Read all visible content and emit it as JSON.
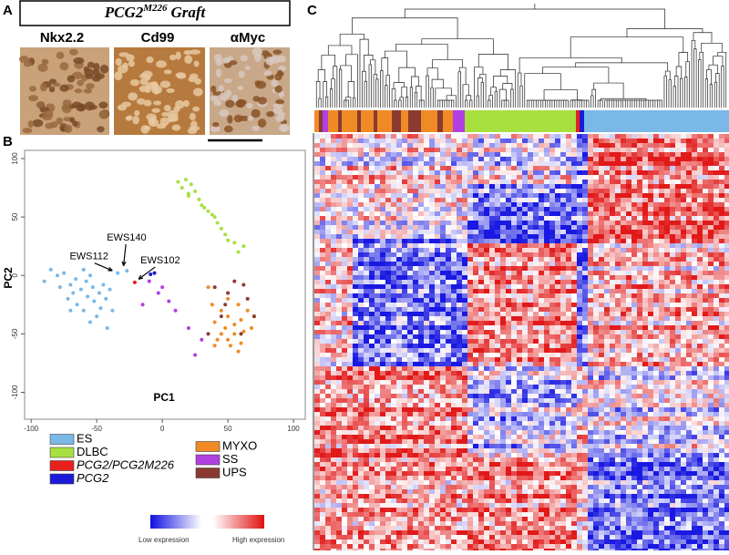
{
  "panel_labels": [
    "A",
    "B",
    "C"
  ],
  "panel_a": {
    "title": {
      "base": "PCG2",
      "sup": "M226",
      "rest": "Graft"
    },
    "stains": [
      "Nkx2.2",
      "Cd99",
      "αMyc"
    ]
  },
  "chart_data": {
    "type": "scatter",
    "x_label": "PC1",
    "y_label": "PC2",
    "xlim": [
      -105,
      109
    ],
    "ylim": [
      -123,
      107
    ],
    "xticks": [
      -100,
      -50,
      0,
      50,
      100
    ],
    "yticks": [
      -100,
      -50,
      0,
      50,
      100
    ],
    "series": [
      {
        "name": "ES",
        "color": "#7ab8e8",
        "x": [
          -90,
          -85,
          -80,
          -78,
          -75,
          -72,
          -70,
          -68,
          -66,
          -65,
          -62,
          -60,
          -58,
          -57,
          -55,
          -53,
          -52,
          -50,
          -48,
          -47,
          -45,
          -43,
          -42,
          -40,
          -38,
          -60,
          -70,
          -55,
          -34,
          -27
        ],
        "values": [
          -5,
          5,
          0,
          -10,
          2,
          -20,
          -8,
          -15,
          -3,
          -25,
          -12,
          -30,
          -5,
          -18,
          -40,
          -10,
          -22,
          -35,
          -15,
          -28,
          -8,
          -20,
          -45,
          -12,
          -30,
          5,
          -30,
          0,
          2,
          4
        ]
      },
      {
        "name": "DLBC",
        "color": "#a8e040",
        "x": [
          12,
          15,
          18,
          20,
          22,
          25,
          20,
          28,
          30,
          32,
          35,
          38,
          40,
          42,
          45,
          48,
          50,
          55,
          58,
          62
        ],
        "values": [
          80,
          75,
          82,
          70,
          78,
          72,
          68,
          65,
          60,
          58,
          55,
          52,
          50,
          45,
          40,
          35,
          30,
          28,
          20,
          25
        ]
      },
      {
        "name": "PCG2/PCG2M226",
        "color": "#e8201c",
        "x": [
          -21
        ],
        "values": [
          -6
        ]
      },
      {
        "name": "PCG2",
        "color": "#1a1ad8",
        "x": [
          -9,
          -6
        ],
        "values": [
          1,
          2
        ]
      },
      {
        "name": "MYXO",
        "color": "#f08a24",
        "x": [
          35,
          38,
          40,
          42,
          45,
          45,
          48,
          50,
          50,
          52,
          55,
          55,
          58,
          60,
          60,
          62,
          65,
          68,
          70,
          40,
          50,
          58
        ],
        "values": [
          -10,
          -25,
          -40,
          -55,
          -30,
          -50,
          -45,
          -35,
          -55,
          -60,
          -42,
          -50,
          -25,
          -38,
          -58,
          -48,
          -30,
          -45,
          -35,
          -60,
          -20,
          -65
        ]
      },
      {
        "name": "SS",
        "color": "#b040e0",
        "x": [
          -10,
          0,
          -15,
          10,
          20,
          30,
          25,
          -3,
          5
        ],
        "values": [
          -5,
          -10,
          -25,
          -30,
          -45,
          -55,
          -68,
          -15,
          -22
        ]
      },
      {
        "name": "UPS",
        "color": "#8b3a30",
        "x": [
          40,
          55,
          65,
          45,
          60,
          70,
          50,
          35,
          62,
          48
        ],
        "values": [
          -10,
          -5,
          -20,
          -35,
          -50,
          -35,
          -15,
          -50,
          -8,
          -25
        ]
      }
    ],
    "annotations": [
      {
        "text": "EWS140",
        "x": -30,
        "y": 4
      },
      {
        "text": "EWS112",
        "x": -35,
        "y": 2
      },
      {
        "text": "EWS102",
        "x": -21,
        "y": -6
      }
    ]
  },
  "heatmap": {
    "colorbar": {
      "low_label": "Low expression",
      "high_label": "High expression"
    }
  }
}
